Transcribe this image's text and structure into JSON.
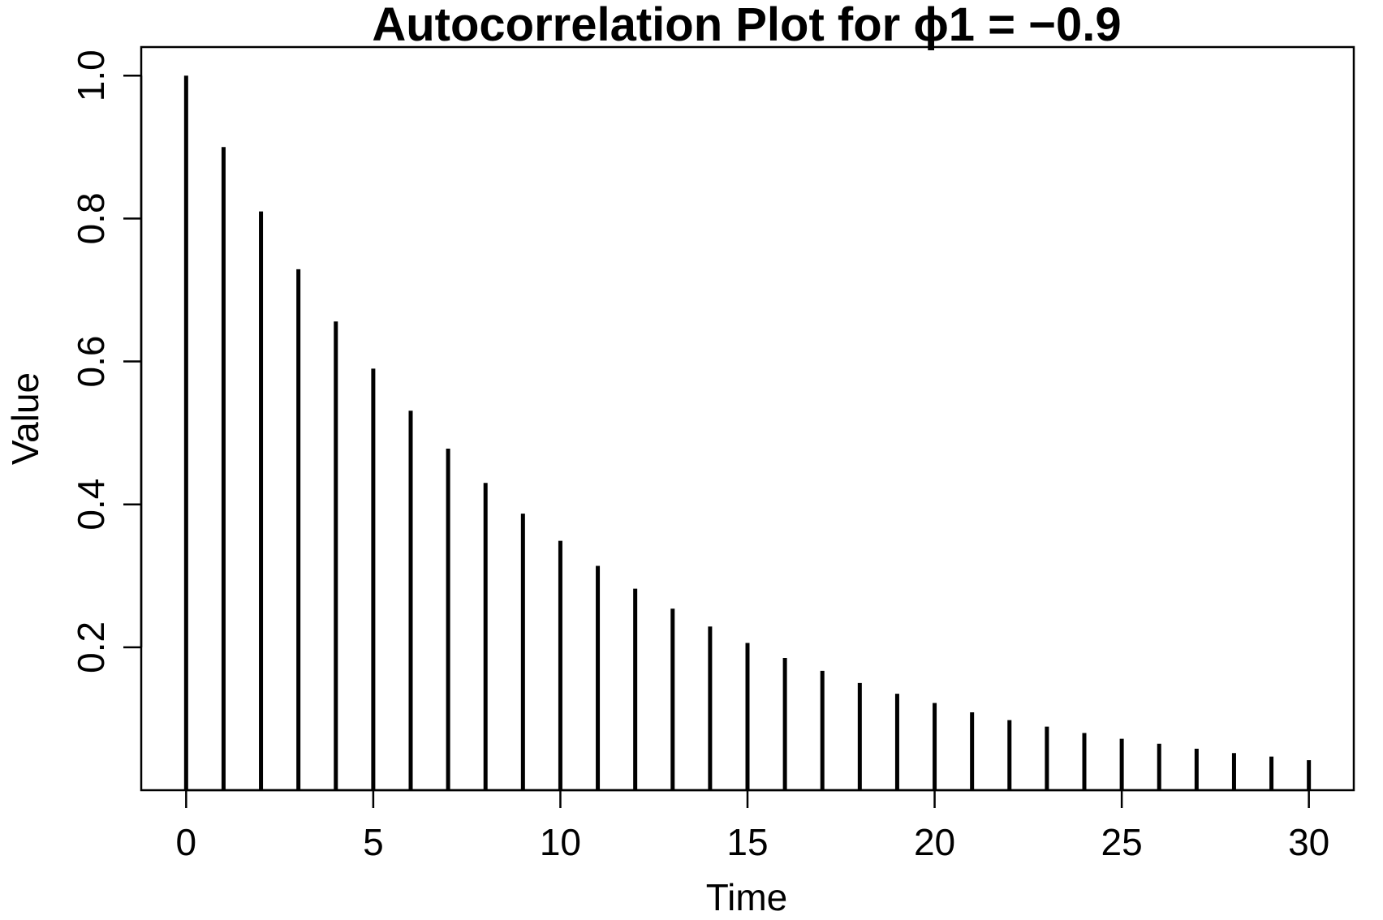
{
  "chart_data": {
    "type": "bar",
    "title": "Autocorrelation Plot for ϕ1 = −0.9",
    "xlabel": "Time",
    "ylabel": "Value",
    "x": [
      0,
      1,
      2,
      3,
      4,
      5,
      6,
      7,
      8,
      9,
      10,
      11,
      12,
      13,
      14,
      15,
      16,
      17,
      18,
      19,
      20,
      21,
      22,
      23,
      24,
      25,
      26,
      27,
      28,
      29,
      30
    ],
    "values": [
      1.0,
      0.9,
      0.81,
      0.729,
      0.656,
      0.59,
      0.531,
      0.478,
      0.43,
      0.387,
      0.349,
      0.314,
      0.282,
      0.254,
      0.229,
      0.206,
      0.185,
      0.167,
      0.15,
      0.135,
      0.122,
      0.109,
      0.098,
      0.089,
      0.08,
      0.072,
      0.065,
      0.058,
      0.052,
      0.047,
      0.042
    ],
    "xlim": [
      -1.2,
      31.2
    ],
    "ylim": [
      0.0,
      1.04
    ],
    "xticks": [
      0,
      5,
      10,
      15,
      20,
      25,
      30
    ],
    "xtick_labels": [
      "0",
      "5",
      "10",
      "15",
      "20",
      "25",
      "30"
    ],
    "yticks": [
      0.2,
      0.4,
      0.6,
      0.8,
      1.0
    ],
    "ytick_labels": [
      "0.2",
      "0.4",
      "0.6",
      "0.8",
      "1.0"
    ],
    "grid": false,
    "legend": "none",
    "color": "#000000"
  }
}
